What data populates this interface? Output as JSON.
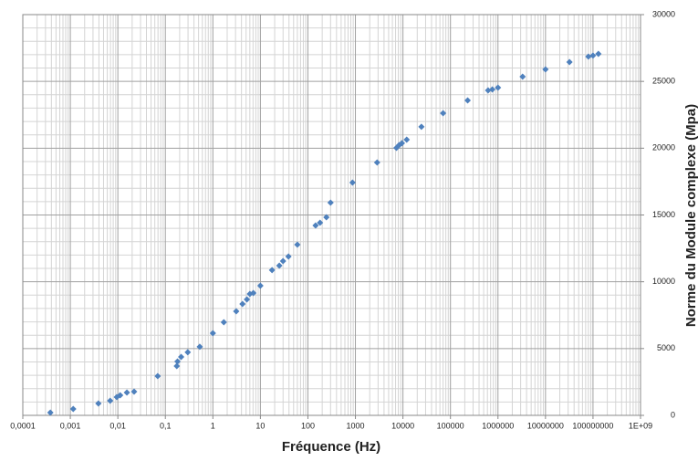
{
  "chart_data": {
    "type": "scatter",
    "x_label": "Fréquence (Hz)",
    "y_label": "Norme du Module complexe (Mpa)",
    "x_scale": "log",
    "y_axis_side": "right",
    "grid": true,
    "minor_grid": true,
    "color": "#4f81bd",
    "x": [
      0.00038,
      0.00115,
      0.0039,
      0.0069,
      0.0095,
      0.0112,
      0.0155,
      0.022,
      0.069,
      0.174,
      0.18,
      0.215,
      0.296,
      0.53,
      1.0,
      1.7,
      3.1,
      4.2,
      5.2,
      6.0,
      7.1,
      10,
      17.6,
      25,
      30,
      39,
      60,
      145,
      180,
      245,
      300,
      870,
      2860,
      7300,
      8300,
      9500,
      12000,
      24500,
      70000,
      230000,
      620000,
      760000,
      1000000,
      3300000,
      10000000,
      32000000,
      80000000,
      100000000,
      130000000
    ],
    "values": [
      205,
      480,
      890,
      1090,
      1370,
      1500,
      1710,
      1780,
      2940,
      3690,
      4030,
      4370,
      4720,
      5130,
      6150,
      6970,
      7790,
      8340,
      8680,
      9090,
      9160,
      9700,
      10870,
      11210,
      11550,
      11890,
      12780,
      14210,
      14420,
      14830,
      15920,
      17430,
      18930,
      20020,
      20230,
      20370,
      20640,
      21600,
      22620,
      23580,
      24330,
      24400,
      24530,
      25350,
      25900,
      26450,
      26860,
      26930,
      27060
    ],
    "xlim": [
      0.0001,
      1000000000
    ],
    "xticks": [
      {
        "value": 0.0001,
        "label": "0,0001"
      },
      {
        "value": 0.001,
        "label": "0,001"
      },
      {
        "value": 0.01,
        "label": "0,01"
      },
      {
        "value": 0.1,
        "label": "0,1"
      },
      1,
      10,
      100,
      1000,
      10000,
      100000,
      1000000,
      10000000,
      100000000,
      {
        "value": 1000000000,
        "label": "1E+09"
      }
    ],
    "ylim": [
      0,
      30000
    ],
    "yticks": [
      0,
      5000,
      10000,
      15000,
      20000,
      25000,
      30000
    ]
  }
}
